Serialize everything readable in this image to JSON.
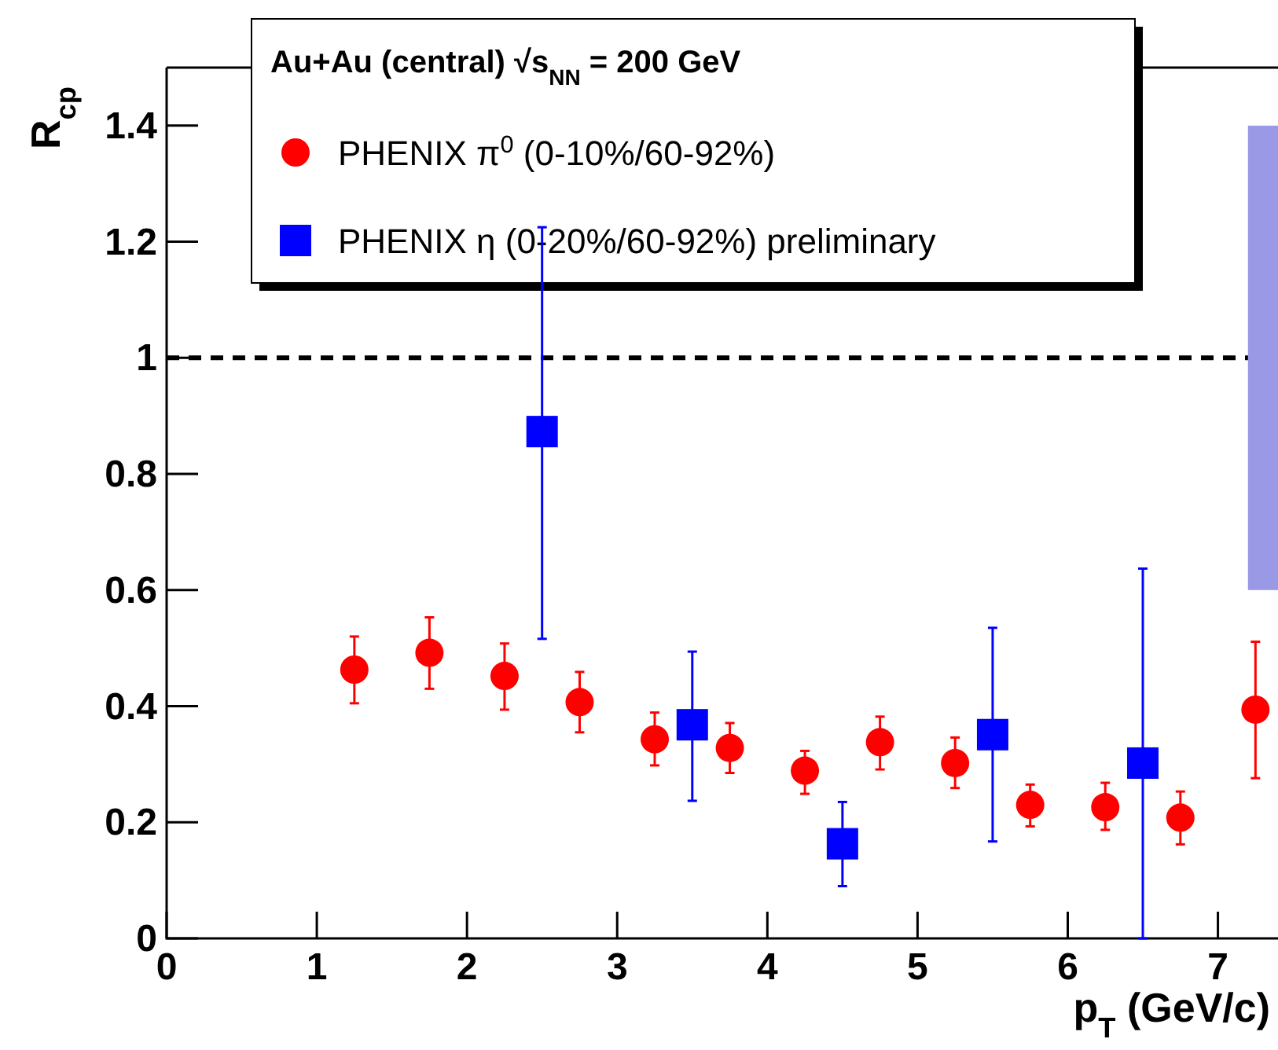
{
  "chart_data": {
    "type": "scatter",
    "xlabel": "p$_{T}$ (GeV/c)",
    "ylabel": "R$_{cp}$",
    "legend_title": "Au+Au (central) √s$_{NN}$ = 200 GeV",
    "legend": "top",
    "grid": false,
    "xlim": [
      0,
      7.4
    ],
    "xticks": [
      0,
      1,
      2,
      3,
      4,
      5,
      6,
      7
    ],
    "ylim": [
      0,
      1.5
    ],
    "yticks": [
      0,
      0.2,
      0.4,
      0.6,
      0.8,
      1,
      1.2,
      1.4
    ],
    "ref_lines": [
      {
        "axis": "y",
        "value": 1,
        "color": "#000000",
        "line_style": "dashed"
      }
    ],
    "series": [
      {
        "type": "bar",
        "color": "#9999e6",
        "x": [
          7.3
        ],
        "base": [
          0.6
        ],
        "values": [
          0.8
        ]
      },
      {
        "name": "PHENIX  π$^{0}$ (0-10%/60-92%)",
        "color": "#ff0000",
        "marker": "circle",
        "x": [
          1.25,
          1.75,
          2.25,
          2.75,
          3.25,
          3.75,
          4.25,
          4.75,
          5.25,
          5.75,
          6.25,
          6.75,
          7.25
        ],
        "values": [
          0.463,
          0.492,
          0.452,
          0.407,
          0.343,
          0.328,
          0.289,
          0.338,
          0.302,
          0.23,
          0.226,
          0.208,
          0.394
        ],
        "errors": [
          [
            0.405,
            0.52
          ],
          [
            0.43,
            0.553
          ],
          [
            0.394,
            0.508
          ],
          [
            0.355,
            0.459
          ],
          [
            0.298,
            0.389
          ],
          [
            0.285,
            0.371
          ],
          [
            0.249,
            0.323
          ],
          [
            0.291,
            0.382
          ],
          [
            0.259,
            0.346
          ],
          [
            0.193,
            0.265
          ],
          [
            0.187,
            0.268
          ],
          [
            0.162,
            0.253
          ],
          [
            0.276,
            0.511
          ]
        ]
      },
      {
        "name": "PHENIX  η (0-20%/60-92%) preliminary",
        "color": "#0000ff",
        "marker": "square",
        "x": [
          2.5,
          3.5,
          4.5,
          5.5,
          6.5
        ],
        "values": [
          0.873,
          0.368,
          0.163,
          0.351,
          0.302
        ],
        "errors": [
          [
            0.516,
            1.225
          ],
          [
            0.237,
            0.494
          ],
          [
            0.09,
            0.235
          ],
          [
            0.167,
            0.535
          ],
          [
            0,
            0.637
          ]
        ]
      }
    ]
  }
}
